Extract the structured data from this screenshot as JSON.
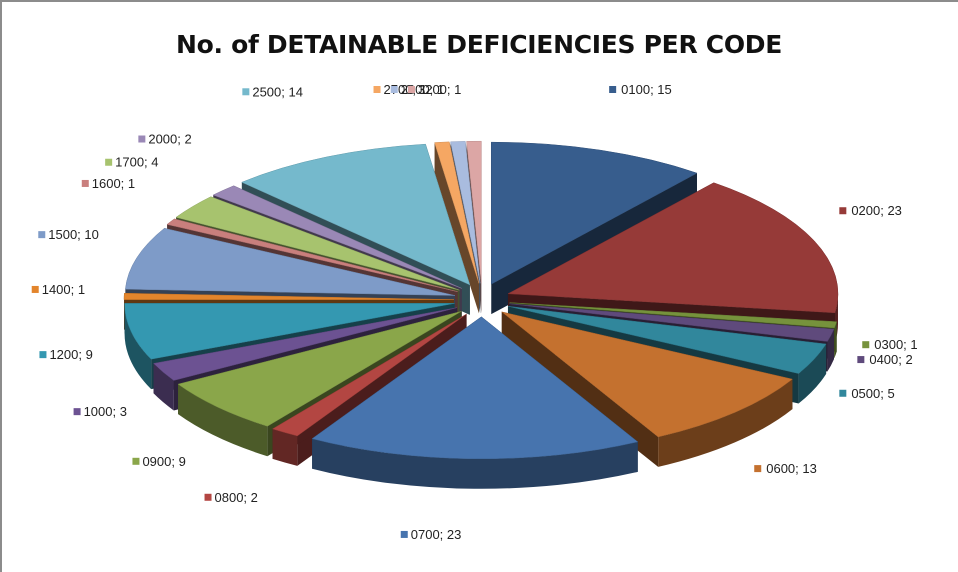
{
  "chart_data": {
    "type": "pie",
    "title": "No. of DETAINABLE DEFICIENCIES PER CODE",
    "style": "3d-exploded",
    "label_format": "{category}; {value}",
    "slices": [
      {
        "category": "0100",
        "value": 15,
        "color": "#375d8d"
      },
      {
        "category": "0200",
        "value": 23,
        "color": "#963a38"
      },
      {
        "category": "0300",
        "value": 1,
        "color": "#76923c"
      },
      {
        "category": "0400",
        "value": 2,
        "color": "#5f4a7c"
      },
      {
        "category": "0500",
        "value": 5,
        "color": "#31879c"
      },
      {
        "category": "0600",
        "value": 13,
        "color": "#c4712f"
      },
      {
        "category": "0700",
        "value": 23,
        "color": "#4774ae"
      },
      {
        "category": "0800",
        "value": 2,
        "color": "#b34642"
      },
      {
        "category": "0900",
        "value": 9,
        "color": "#8aa64a"
      },
      {
        "category": "1000",
        "value": 3,
        "color": "#6c5292"
      },
      {
        "category": "1200",
        "value": 9,
        "color": "#3498b1"
      },
      {
        "category": "1400",
        "value": 1,
        "color": "#e3852c"
      },
      {
        "category": "1500",
        "value": 10,
        "color": "#7e9bc8"
      },
      {
        "category": "1600",
        "value": 1,
        "color": "#c97f7d"
      },
      {
        "category": "1700",
        "value": 4,
        "color": "#a7c36e"
      },
      {
        "category": "2000",
        "value": 2,
        "color": "#9a88b6"
      },
      {
        "category": "2500",
        "value": 14,
        "color": "#75b9cc"
      },
      {
        "category": "2700",
        "value": 1,
        "color": "#f5a763"
      },
      {
        "category": "2900",
        "value": 1,
        "color": "#a9bcdf"
      },
      {
        "category": "3200",
        "value": 1,
        "color": "#dca6a5"
      }
    ]
  }
}
